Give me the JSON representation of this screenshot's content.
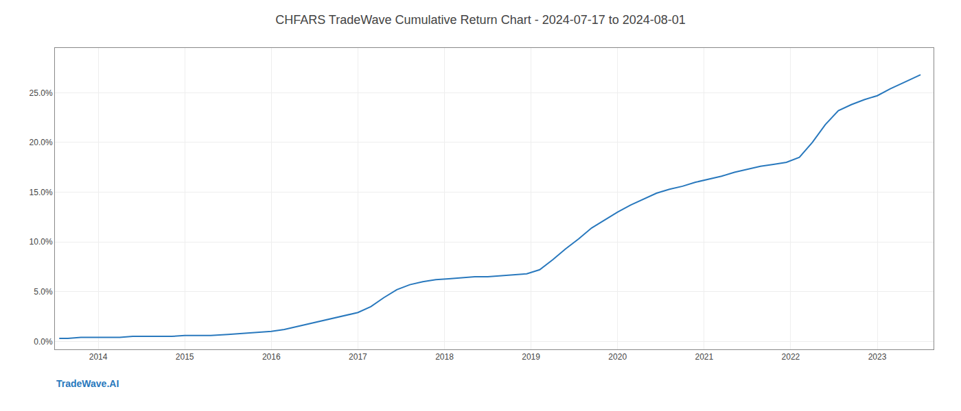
{
  "chart_data": {
    "type": "line",
    "title": "CHFARS TradeWave Cumulative Return Chart - 2024-07-17 to 2024-08-01",
    "annotations": [
      {
        "text": "TradeWave.AI"
      }
    ],
    "color": "#2878bd",
    "grid": true,
    "x": [
      2013.55,
      2013.65,
      2013.8,
      2013.95,
      2014.1,
      2014.25,
      2014.4,
      2014.55,
      2014.7,
      2014.85,
      2015.0,
      2015.15,
      2015.3,
      2015.5,
      2015.7,
      2015.85,
      2016.0,
      2016.15,
      2016.35,
      2016.55,
      2016.75,
      2016.9,
      2017.0,
      2017.15,
      2017.3,
      2017.45,
      2017.6,
      2017.75,
      2017.9,
      2018.05,
      2018.2,
      2018.35,
      2018.5,
      2018.65,
      2018.8,
      2018.95,
      2019.1,
      2019.25,
      2019.4,
      2019.55,
      2019.7,
      2019.85,
      2020.0,
      2020.15,
      2020.3,
      2020.45,
      2020.6,
      2020.75,
      2020.9,
      2021.05,
      2021.2,
      2021.35,
      2021.5,
      2021.65,
      2021.8,
      2021.95,
      2022.1,
      2022.25,
      2022.4,
      2022.55,
      2022.7,
      2022.85,
      2023.0,
      2023.15,
      2023.3,
      2023.5
    ],
    "values": [
      0.003,
      0.003,
      0.004,
      0.004,
      0.004,
      0.004,
      0.005,
      0.005,
      0.005,
      0.005,
      0.006,
      0.006,
      0.006,
      0.007,
      0.008,
      0.009,
      0.01,
      0.012,
      0.016,
      0.02,
      0.024,
      0.027,
      0.029,
      0.035,
      0.044,
      0.052,
      0.057,
      0.06,
      0.062,
      0.063,
      0.064,
      0.065,
      0.065,
      0.066,
      0.067,
      0.068,
      0.072,
      0.082,
      0.093,
      0.103,
      0.114,
      0.122,
      0.13,
      0.137,
      0.143,
      0.149,
      0.153,
      0.156,
      0.16,
      0.163,
      0.166,
      0.17,
      0.173,
      0.176,
      0.178,
      0.18,
      0.185,
      0.2,
      0.218,
      0.232,
      0.238,
      0.243,
      0.247,
      0.254,
      0.26,
      0.268
    ],
    "xlim": [
      2013.5,
      2023.65
    ],
    "xticks": [
      2014,
      2015,
      2016,
      2017,
      2018,
      2019,
      2020,
      2021,
      2022,
      2023
    ],
    "ylim": [
      -0.008,
      0.295
    ],
    "yticks": [
      {
        "value": 0.0,
        "label": "0.0%"
      },
      {
        "value": 0.05,
        "label": "5.0%"
      },
      {
        "value": 0.1,
        "label": "10.0%"
      },
      {
        "value": 0.15,
        "label": "15.0%"
      },
      {
        "value": 0.2,
        "label": "20.0%"
      },
      {
        "value": 0.25,
        "label": "25.0%"
      }
    ]
  }
}
